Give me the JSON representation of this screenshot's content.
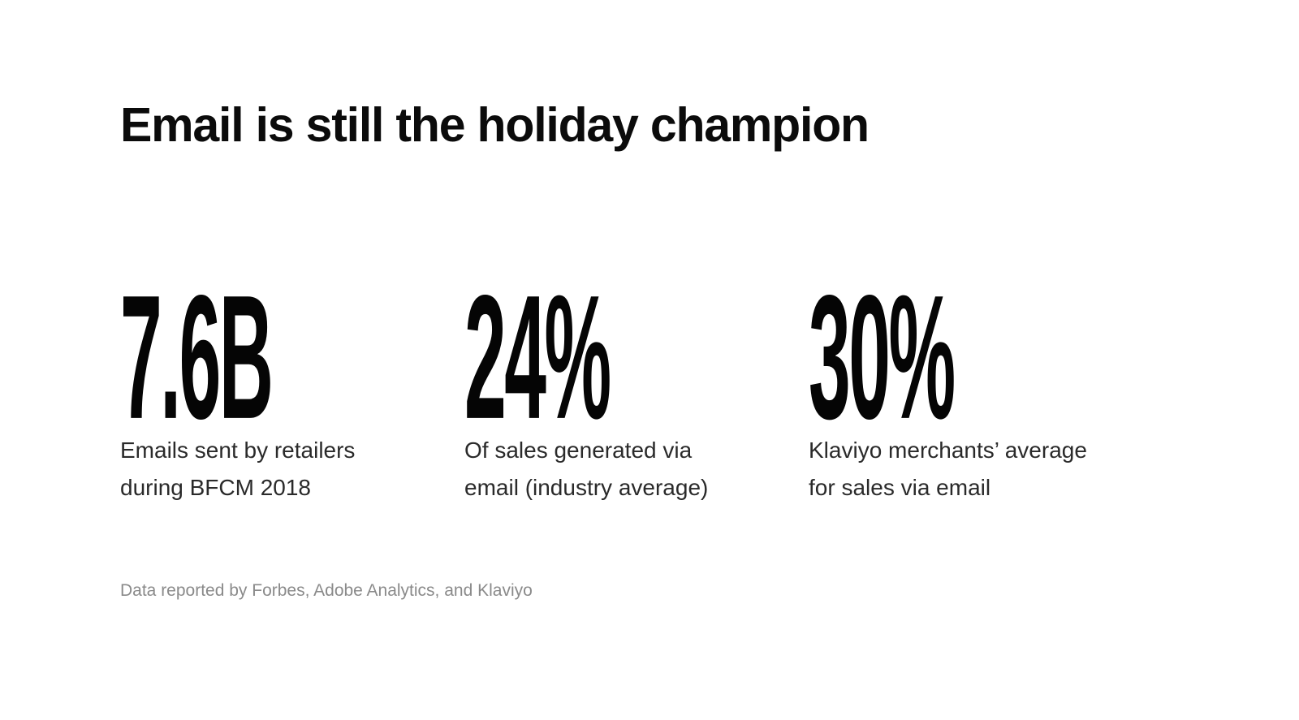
{
  "slide": {
    "title": "Email is still the holiday champion",
    "stats": [
      {
        "value": "7.6B",
        "label_line1": "Emails sent by retailers",
        "label_line2": "during BFCM 2018"
      },
      {
        "value": "24%",
        "label_line1": "Of sales generated via",
        "label_line2": "email (industry average)"
      },
      {
        "value": "30%",
        "label_line1": "Klaviyo merchants’ average",
        "label_line2": "for sales via email"
      }
    ],
    "source": "Data reported by Forbes, Adobe Analytics, and Klaviyo"
  }
}
